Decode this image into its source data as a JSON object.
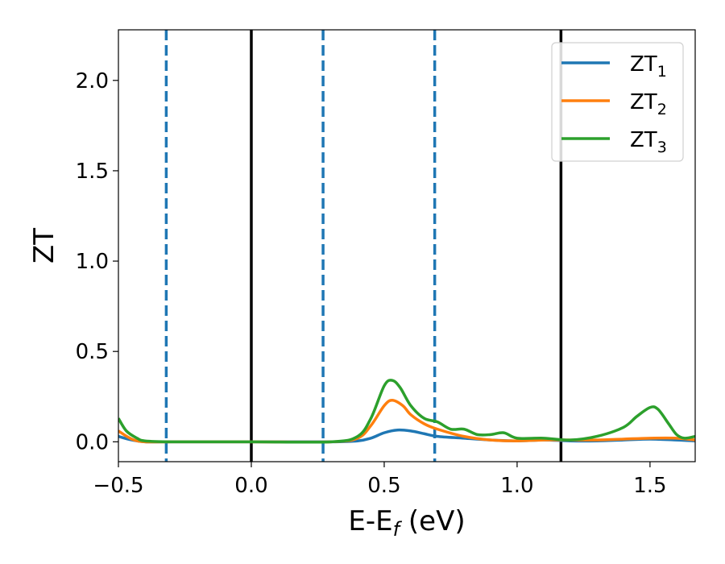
{
  "chart_data": {
    "type": "line",
    "xlabel_main": "E-E",
    "xlabel_sub": "f",
    "xlabel_tail": " (eV)",
    "ylabel": "ZT",
    "xlim": [
      -0.5,
      1.67
    ],
    "ylim": [
      -0.11,
      2.28
    ],
    "xticks": [
      -0.5,
      0.0,
      0.5,
      1.0,
      1.5
    ],
    "xtick_labels": [
      "−0.5",
      "0.0",
      "0.5",
      "1.0",
      "1.5"
    ],
    "yticks": [
      0.0,
      0.5,
      1.0,
      1.5,
      2.0
    ],
    "ytick_labels": [
      "0.0",
      "0.5",
      "1.0",
      "1.5",
      "2.0"
    ],
    "grid": false,
    "legend_position": "top-right",
    "vertical_lines": [
      {
        "x": -0.32,
        "style": "dashed",
        "color": "#1f77b4"
      },
      {
        "x": 0.0,
        "style": "solid",
        "color": "#000000"
      },
      {
        "x": 0.27,
        "style": "dashed",
        "color": "#1f77b4"
      },
      {
        "x": 0.69,
        "style": "dashed",
        "color": "#1f77b4"
      },
      {
        "x": 1.165,
        "style": "solid",
        "color": "#000000"
      }
    ],
    "series": [
      {
        "name": "ZT",
        "sub": "1",
        "color": "#1f77b4",
        "x": [
          -0.5,
          -0.45,
          -0.4,
          -0.3,
          0.0,
          0.3,
          0.4,
          0.45,
          0.5,
          0.55,
          0.6,
          0.65,
          0.7,
          0.8,
          0.9,
          1.0,
          1.1,
          1.2,
          1.3,
          1.4,
          1.5,
          1.6,
          1.67
        ],
        "y": [
          0.03,
          0.01,
          0.0,
          0.0,
          0.0,
          0.0,
          0.005,
          0.02,
          0.05,
          0.065,
          0.06,
          0.045,
          0.03,
          0.02,
          0.01,
          0.005,
          0.01,
          0.005,
          0.005,
          0.01,
          0.015,
          0.01,
          0.005
        ]
      },
      {
        "name": "ZT",
        "sub": "2",
        "color": "#ff7f0e",
        "x": [
          -0.5,
          -0.45,
          -0.4,
          -0.3,
          0.0,
          0.3,
          0.4,
          0.45,
          0.5,
          0.53,
          0.57,
          0.6,
          0.65,
          0.7,
          0.8,
          0.9,
          1.0,
          1.1,
          1.2,
          1.3,
          1.4,
          1.5,
          1.6,
          1.67
        ],
        "y": [
          0.06,
          0.015,
          0.0,
          0.0,
          0.0,
          0.0,
          0.02,
          0.09,
          0.2,
          0.23,
          0.2,
          0.15,
          0.1,
          0.07,
          0.03,
          0.01,
          0.005,
          0.01,
          0.01,
          0.01,
          0.015,
          0.02,
          0.02,
          0.01
        ]
      },
      {
        "name": "ZT",
        "sub": "3",
        "color": "#2ca02c",
        "x": [
          -0.5,
          -0.47,
          -0.43,
          -0.4,
          -0.3,
          0.0,
          0.3,
          0.4,
          0.45,
          0.5,
          0.53,
          0.56,
          0.6,
          0.65,
          0.7,
          0.75,
          0.8,
          0.85,
          0.9,
          0.95,
          1.0,
          1.1,
          1.2,
          1.3,
          1.4,
          1.45,
          1.5,
          1.53,
          1.57,
          1.6,
          1.63,
          1.67
        ],
        "y": [
          0.13,
          0.06,
          0.02,
          0.005,
          0.0,
          0.0,
          0.0,
          0.03,
          0.13,
          0.31,
          0.34,
          0.3,
          0.2,
          0.13,
          0.11,
          0.07,
          0.07,
          0.04,
          0.04,
          0.05,
          0.02,
          0.02,
          0.01,
          0.03,
          0.08,
          0.14,
          0.19,
          0.18,
          0.1,
          0.04,
          0.02,
          0.03
        ]
      }
    ]
  }
}
